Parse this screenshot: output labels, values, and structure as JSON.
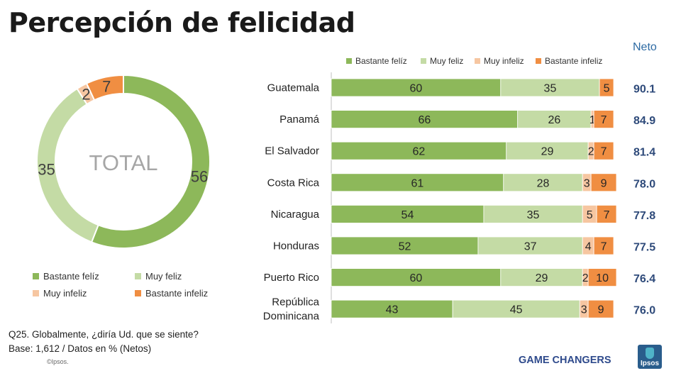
{
  "title": "Percepción de felicidad",
  "neto_header": "Neto",
  "colors": {
    "bastante_feliz": "#8db85a",
    "muy_feliz": "#c4dba5",
    "muy_infeliz": "#f6c6a1",
    "bastante_infeliz": "#f08e42",
    "neto_text": "#2e4a7a"
  },
  "legend": [
    "Bastante felíz",
    "Muy feliz",
    "Muy infeliz",
    "Bastante infeliz"
  ],
  "footnote": {
    "question": "Q25. Globalmente, ¿diría Ud. que se siente?",
    "base": "Base: 1,612 / Datos en % (Netos)",
    "copyright": "©Ipsos."
  },
  "brand": {
    "tagline": "GAME CHANGERS",
    "logo_text": "Ipsos"
  },
  "chart_data": [
    {
      "type": "pie",
      "title": "TOTAL",
      "categories": [
        "Bastante felíz",
        "Muy feliz",
        "Muy infeliz",
        "Bastante infeliz"
      ],
      "values": [
        56,
        35,
        2,
        7
      ]
    },
    {
      "type": "bar",
      "stacked": true,
      "orientation": "horizontal",
      "categories": [
        "Guatemala",
        "Panamá",
        "El Salvador",
        "Costa Rica",
        "Nicaragua",
        "Honduras",
        "Puerto Rico",
        "República Dominicana"
      ],
      "category_lines": [
        [
          "Guatemala"
        ],
        [
          "Panamá"
        ],
        [
          "El Salvador"
        ],
        [
          "Costa Rica"
        ],
        [
          "Nicaragua"
        ],
        [
          "Honduras"
        ],
        [
          "Puerto Rico"
        ],
        [
          "República",
          "Dominicana"
        ]
      ],
      "series": [
        {
          "name": "Bastante felíz",
          "values": [
            60,
            66,
            62,
            61,
            54,
            52,
            60,
            43
          ]
        },
        {
          "name": "Muy feliz",
          "values": [
            35,
            26,
            29,
            28,
            35,
            37,
            29,
            45
          ]
        },
        {
          "name": "Muy infeliz",
          "values": [
            null,
            1,
            2,
            3,
            5,
            4,
            2,
            3
          ]
        },
        {
          "name": "Bastante infeliz",
          "values": [
            5,
            7,
            7,
            9,
            7,
            7,
            10,
            9
          ]
        }
      ],
      "neto": [
        "90.1",
        "84.9",
        "81.4",
        "78.0",
        "77.8",
        "77.5",
        "76.4",
        "76.0"
      ],
      "xlim": [
        0,
        100
      ]
    }
  ]
}
